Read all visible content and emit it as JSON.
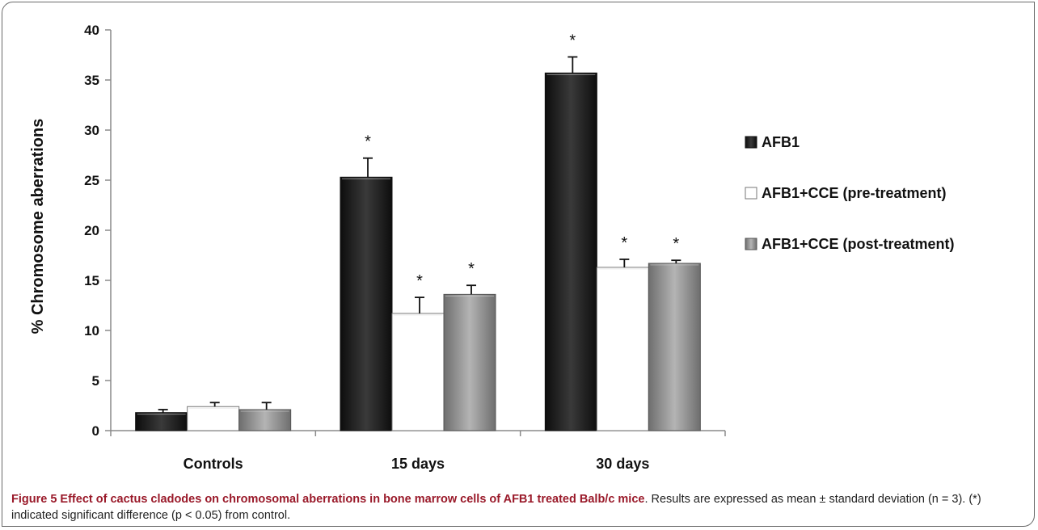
{
  "chart_data": {
    "type": "bar",
    "title": "",
    "xlabel": "",
    "ylabel": "% Chromosome aberrations",
    "ylim": [
      0,
      40
    ],
    "yticks": [
      0,
      5,
      10,
      15,
      20,
      25,
      30,
      35,
      40
    ],
    "categories": [
      "Controls",
      "15 days",
      "30 days"
    ],
    "legend_position": "right",
    "grid": false,
    "series": [
      {
        "name": "AFB1",
        "color": "#1c1c1c",
        "values": [
          1.8,
          25.3,
          35.7
        ],
        "errors": [
          0.3,
          1.9,
          1.6
        ],
        "significant": [
          false,
          true,
          true
        ]
      },
      {
        "name": "AFB1+CCE (pre-treatment)",
        "color": "#ffffff",
        "values": [
          2.4,
          11.7,
          16.3
        ],
        "errors": [
          0.4,
          1.6,
          0.8
        ],
        "significant": [
          false,
          true,
          true
        ]
      },
      {
        "name": "AFB1+CCE (post-treatment)",
        "color": "#8c8c8c",
        "values": [
          2.1,
          13.6,
          16.7
        ],
        "errors": [
          0.7,
          0.9,
          0.3
        ],
        "significant": [
          false,
          true,
          true
        ]
      }
    ],
    "significance_marker": "*"
  },
  "caption": {
    "label": "Figure 5 Effect of cactus cladodes on chromosomal aberrations in bone marrow cells of AFB1 treated Balb/c mice",
    "text": ". Results are expressed as mean ± standard deviation (n = 3). (*) indicated significant difference (p < 0.05) from control."
  }
}
